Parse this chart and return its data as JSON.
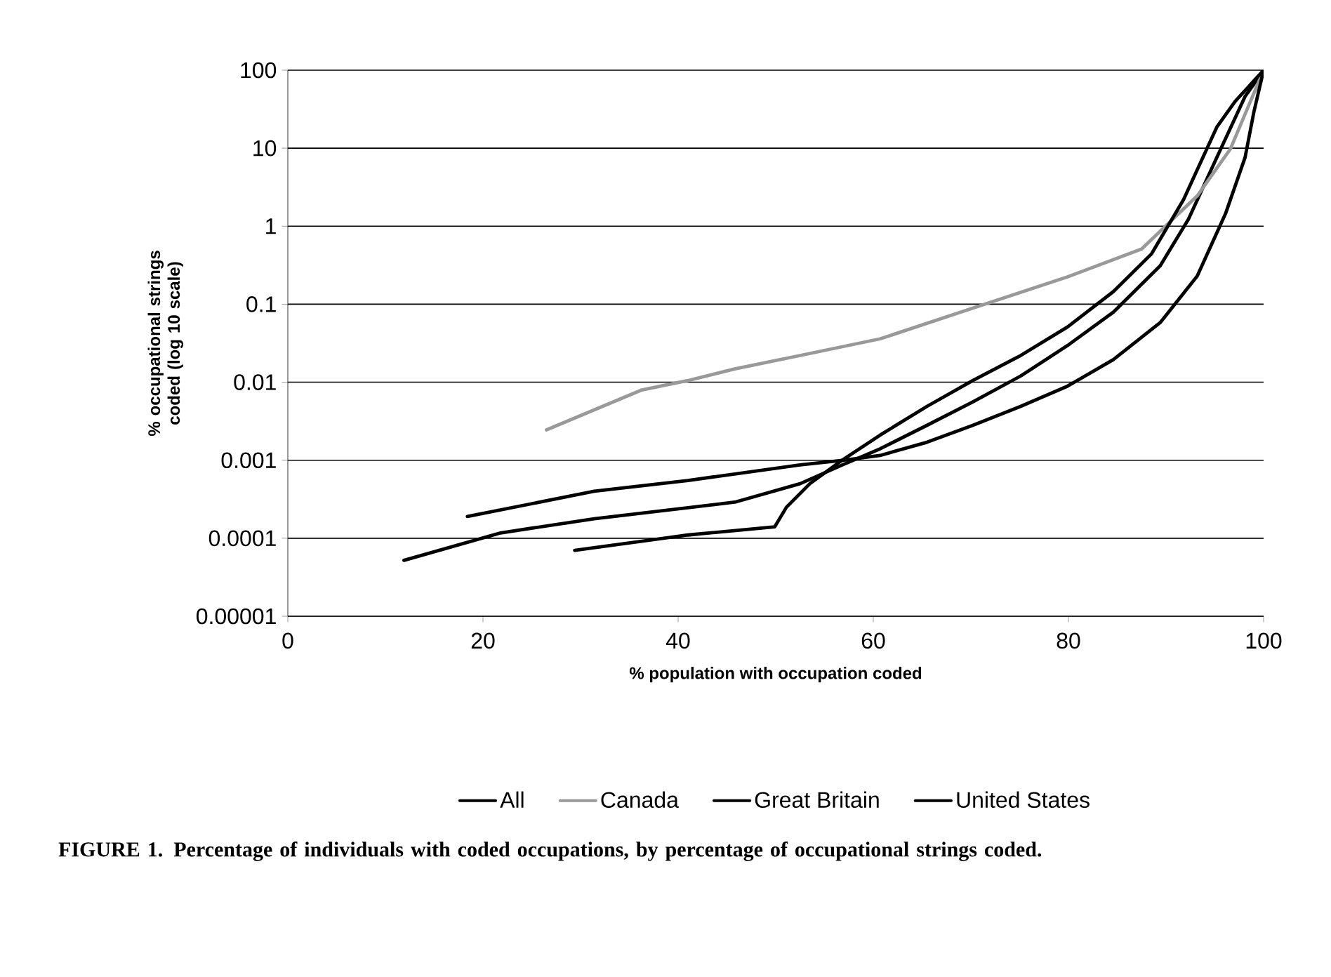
{
  "chart_data": {
    "type": "line",
    "xlabel": "% population with occupation coded",
    "ylabel": "% occupational strings coded (log 10 scale)",
    "annotations": [
      "FIGURE 1. Percentage of individuals with coded occupations, by percentage of occupational strings coded."
    ],
    "xlim": [
      0,
      100
    ],
    "xticks": [
      0,
      20,
      40,
      60,
      80,
      100
    ],
    "ylim": [
      1e-05,
      100
    ],
    "yticks": [
      {
        "value": 1e-05,
        "label": "0.00001"
      },
      {
        "value": 0.0001,
        "label": "0.0001"
      },
      {
        "value": 0.001,
        "label": "0.001"
      },
      {
        "value": 0.01,
        "label": "0.01"
      },
      {
        "value": 0.1,
        "label": "0.1"
      },
      {
        "value": 1,
        "label": "1"
      },
      {
        "value": 10,
        "label": "10"
      },
      {
        "value": 100,
        "label": "100"
      }
    ],
    "log": "y",
    "grid": "y",
    "legend": "bottom",
    "marker": "none",
    "line_style": "solid",
    "series": [
      {
        "name": "All",
        "color": "#000000",
        "x": [
          11.9,
          21.8,
          31.4,
          45.8,
          52.5,
          57,
          60.7,
          65.5,
          70.2,
          75.1,
          79.9,
          84.6,
          89.4,
          92.3,
          95.2,
          98.1,
          100
        ],
        "values": [
          5.2e-05,
          0.000117,
          0.000178,
          0.00029,
          0.0005,
          0.00089,
          0.0014,
          0.0028,
          0.0056,
          0.012,
          0.0295,
          0.079,
          0.31,
          1.23,
          7.6,
          46,
          100
        ]
      },
      {
        "name": "Canada",
        "color": "#999999",
        "x": [
          26.5,
          36.2,
          41,
          45.8,
          52.5,
          60.7,
          70.2,
          79.9,
          87.5,
          93.2,
          96.6,
          100
        ],
        "values": [
          0.00245,
          0.0079,
          0.0105,
          0.0148,
          0.022,
          0.036,
          0.089,
          0.224,
          0.51,
          2.45,
          9.8,
          100
        ]
      },
      {
        "name": "Great Britain",
        "color": "#000000",
        "x": [
          18.4,
          31.4,
          41,
          52.5,
          57,
          60.7,
          65.5,
          70.2,
          75.1,
          79.9,
          84.6,
          89.4,
          93.2,
          96.1,
          98.1,
          99,
          100
        ],
        "values": [
          0.00019,
          0.0004,
          0.00055,
          0.00087,
          0.001,
          0.00115,
          0.0017,
          0.0028,
          0.0049,
          0.0089,
          0.0195,
          0.058,
          0.23,
          1.45,
          7.6,
          29,
          100
        ]
      },
      {
        "name": "United States",
        "color": "#000000",
        "x": [
          29.4,
          41,
          49.9,
          51.1,
          53.5,
          56.8,
          60.7,
          65.5,
          70.2,
          75.1,
          79.9,
          84.6,
          88.5,
          91.8,
          95.2,
          97.1,
          100
        ],
        "values": [
          7e-05,
          0.00011,
          0.00014,
          0.00025,
          0.0005,
          0.001,
          0.0021,
          0.0049,
          0.0105,
          0.022,
          0.051,
          0.145,
          0.44,
          2.2,
          18.6,
          40,
          100
        ]
      }
    ]
  }
}
